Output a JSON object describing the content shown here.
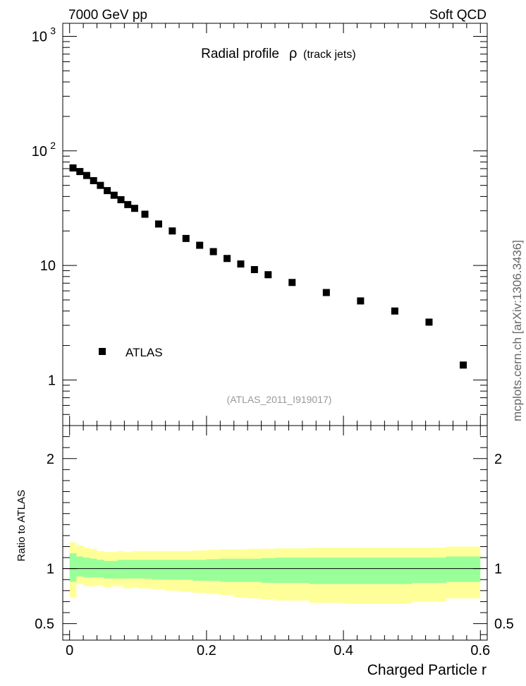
{
  "header": {
    "left": "7000 GeV pp",
    "right": "Soft QCD",
    "side_label": "mcplots.cern.ch [arXiv:1306.3436]"
  },
  "chart_data": [
    {
      "type": "scatter",
      "title_main": "Radial profile",
      "title_symbol": "ρ",
      "title_sub": "(track jets)",
      "watermark": "(ATLAS_2011_I919017)",
      "legend": {
        "label": "ATLAS",
        "placement": "lower-left"
      },
      "xlim": [
        -0.01,
        0.61
      ],
      "ylim": [
        0.4,
        1300
      ],
      "yscale": "log",
      "ytick_labels": [
        {
          "value": 1,
          "label": "1"
        },
        {
          "value": 10,
          "label": "10"
        },
        {
          "value": 100,
          "label": "10",
          "exp": "2"
        },
        {
          "value": 1000,
          "label": "10",
          "exp": "3"
        }
      ],
      "series": [
        {
          "name": "ATLAS",
          "marker": "square",
          "color": "#000000",
          "x": [
            0.005,
            0.015,
            0.025,
            0.035,
            0.045,
            0.055,
            0.065,
            0.075,
            0.085,
            0.095,
            0.11,
            0.13,
            0.15,
            0.17,
            0.19,
            0.21,
            0.23,
            0.25,
            0.27,
            0.29,
            0.325,
            0.375,
            0.425,
            0.475,
            0.525,
            0.575
          ],
          "y": [
            71,
            66,
            61,
            55,
            50,
            45,
            41,
            37.5,
            34,
            31.5,
            28,
            23,
            20,
            17.2,
            15,
            13.2,
            11.5,
            10.3,
            9.2,
            8.3,
            7.1,
            5.8,
            4.9,
            4.0,
            3.2,
            1.35
          ]
        }
      ]
    },
    {
      "type": "area",
      "ylabel": "Ratio to ATLAS",
      "xlabel": "Charged Particle r",
      "xlim": [
        -0.01,
        0.61
      ],
      "ylim": [
        0.35,
        2.3
      ],
      "reference_line": 1,
      "ytick_labels": [
        {
          "value": 0.5,
          "label": "0.5"
        },
        {
          "value": 1,
          "label": "1"
        },
        {
          "value": 2,
          "label": "2"
        }
      ],
      "xtick_labels": [
        {
          "value": 0,
          "label": "0"
        },
        {
          "value": 0.2,
          "label": "0.2"
        },
        {
          "value": 0.4,
          "label": "0.4"
        },
        {
          "value": 0.6,
          "label": "0.6"
        }
      ],
      "band_colors": {
        "outer": "#ffff99",
        "inner": "#99ff99"
      },
      "bins": [
        0,
        0.01,
        0.02,
        0.03,
        0.04,
        0.05,
        0.06,
        0.07,
        0.08,
        0.09,
        0.1,
        0.12,
        0.14,
        0.16,
        0.18,
        0.2,
        0.22,
        0.24,
        0.26,
        0.28,
        0.3,
        0.35,
        0.4,
        0.45,
        0.5,
        0.55,
        0.6
      ],
      "outer_upper": [
        1.24,
        1.21,
        1.19,
        1.18,
        1.16,
        1.15,
        1.15,
        1.16,
        1.15,
        1.16,
        1.16,
        1.16,
        1.16,
        1.16,
        1.165,
        1.17,
        1.175,
        1.175,
        1.18,
        1.18,
        1.185,
        1.19,
        1.19,
        1.19,
        1.19,
        1.2
      ],
      "outer_lower": [
        0.74,
        0.86,
        0.84,
        0.84,
        0.85,
        0.83,
        0.84,
        0.84,
        0.82,
        0.83,
        0.82,
        0.81,
        0.8,
        0.79,
        0.78,
        0.77,
        0.76,
        0.74,
        0.73,
        0.72,
        0.71,
        0.69,
        0.68,
        0.68,
        0.7,
        0.73
      ],
      "inner_upper": [
        1.14,
        1.11,
        1.1,
        1.09,
        1.08,
        1.07,
        1.07,
        1.08,
        1.08,
        1.08,
        1.08,
        1.08,
        1.08,
        1.08,
        1.08,
        1.085,
        1.09,
        1.09,
        1.09,
        1.095,
        1.1,
        1.1,
        1.1,
        1.1,
        1.1,
        1.11
      ],
      "inner_lower": [
        0.88,
        0.93,
        0.92,
        0.92,
        0.92,
        0.91,
        0.91,
        0.91,
        0.91,
        0.91,
        0.91,
        0.9,
        0.9,
        0.9,
        0.89,
        0.89,
        0.88,
        0.88,
        0.88,
        0.87,
        0.87,
        0.86,
        0.86,
        0.86,
        0.87,
        0.88
      ]
    }
  ]
}
